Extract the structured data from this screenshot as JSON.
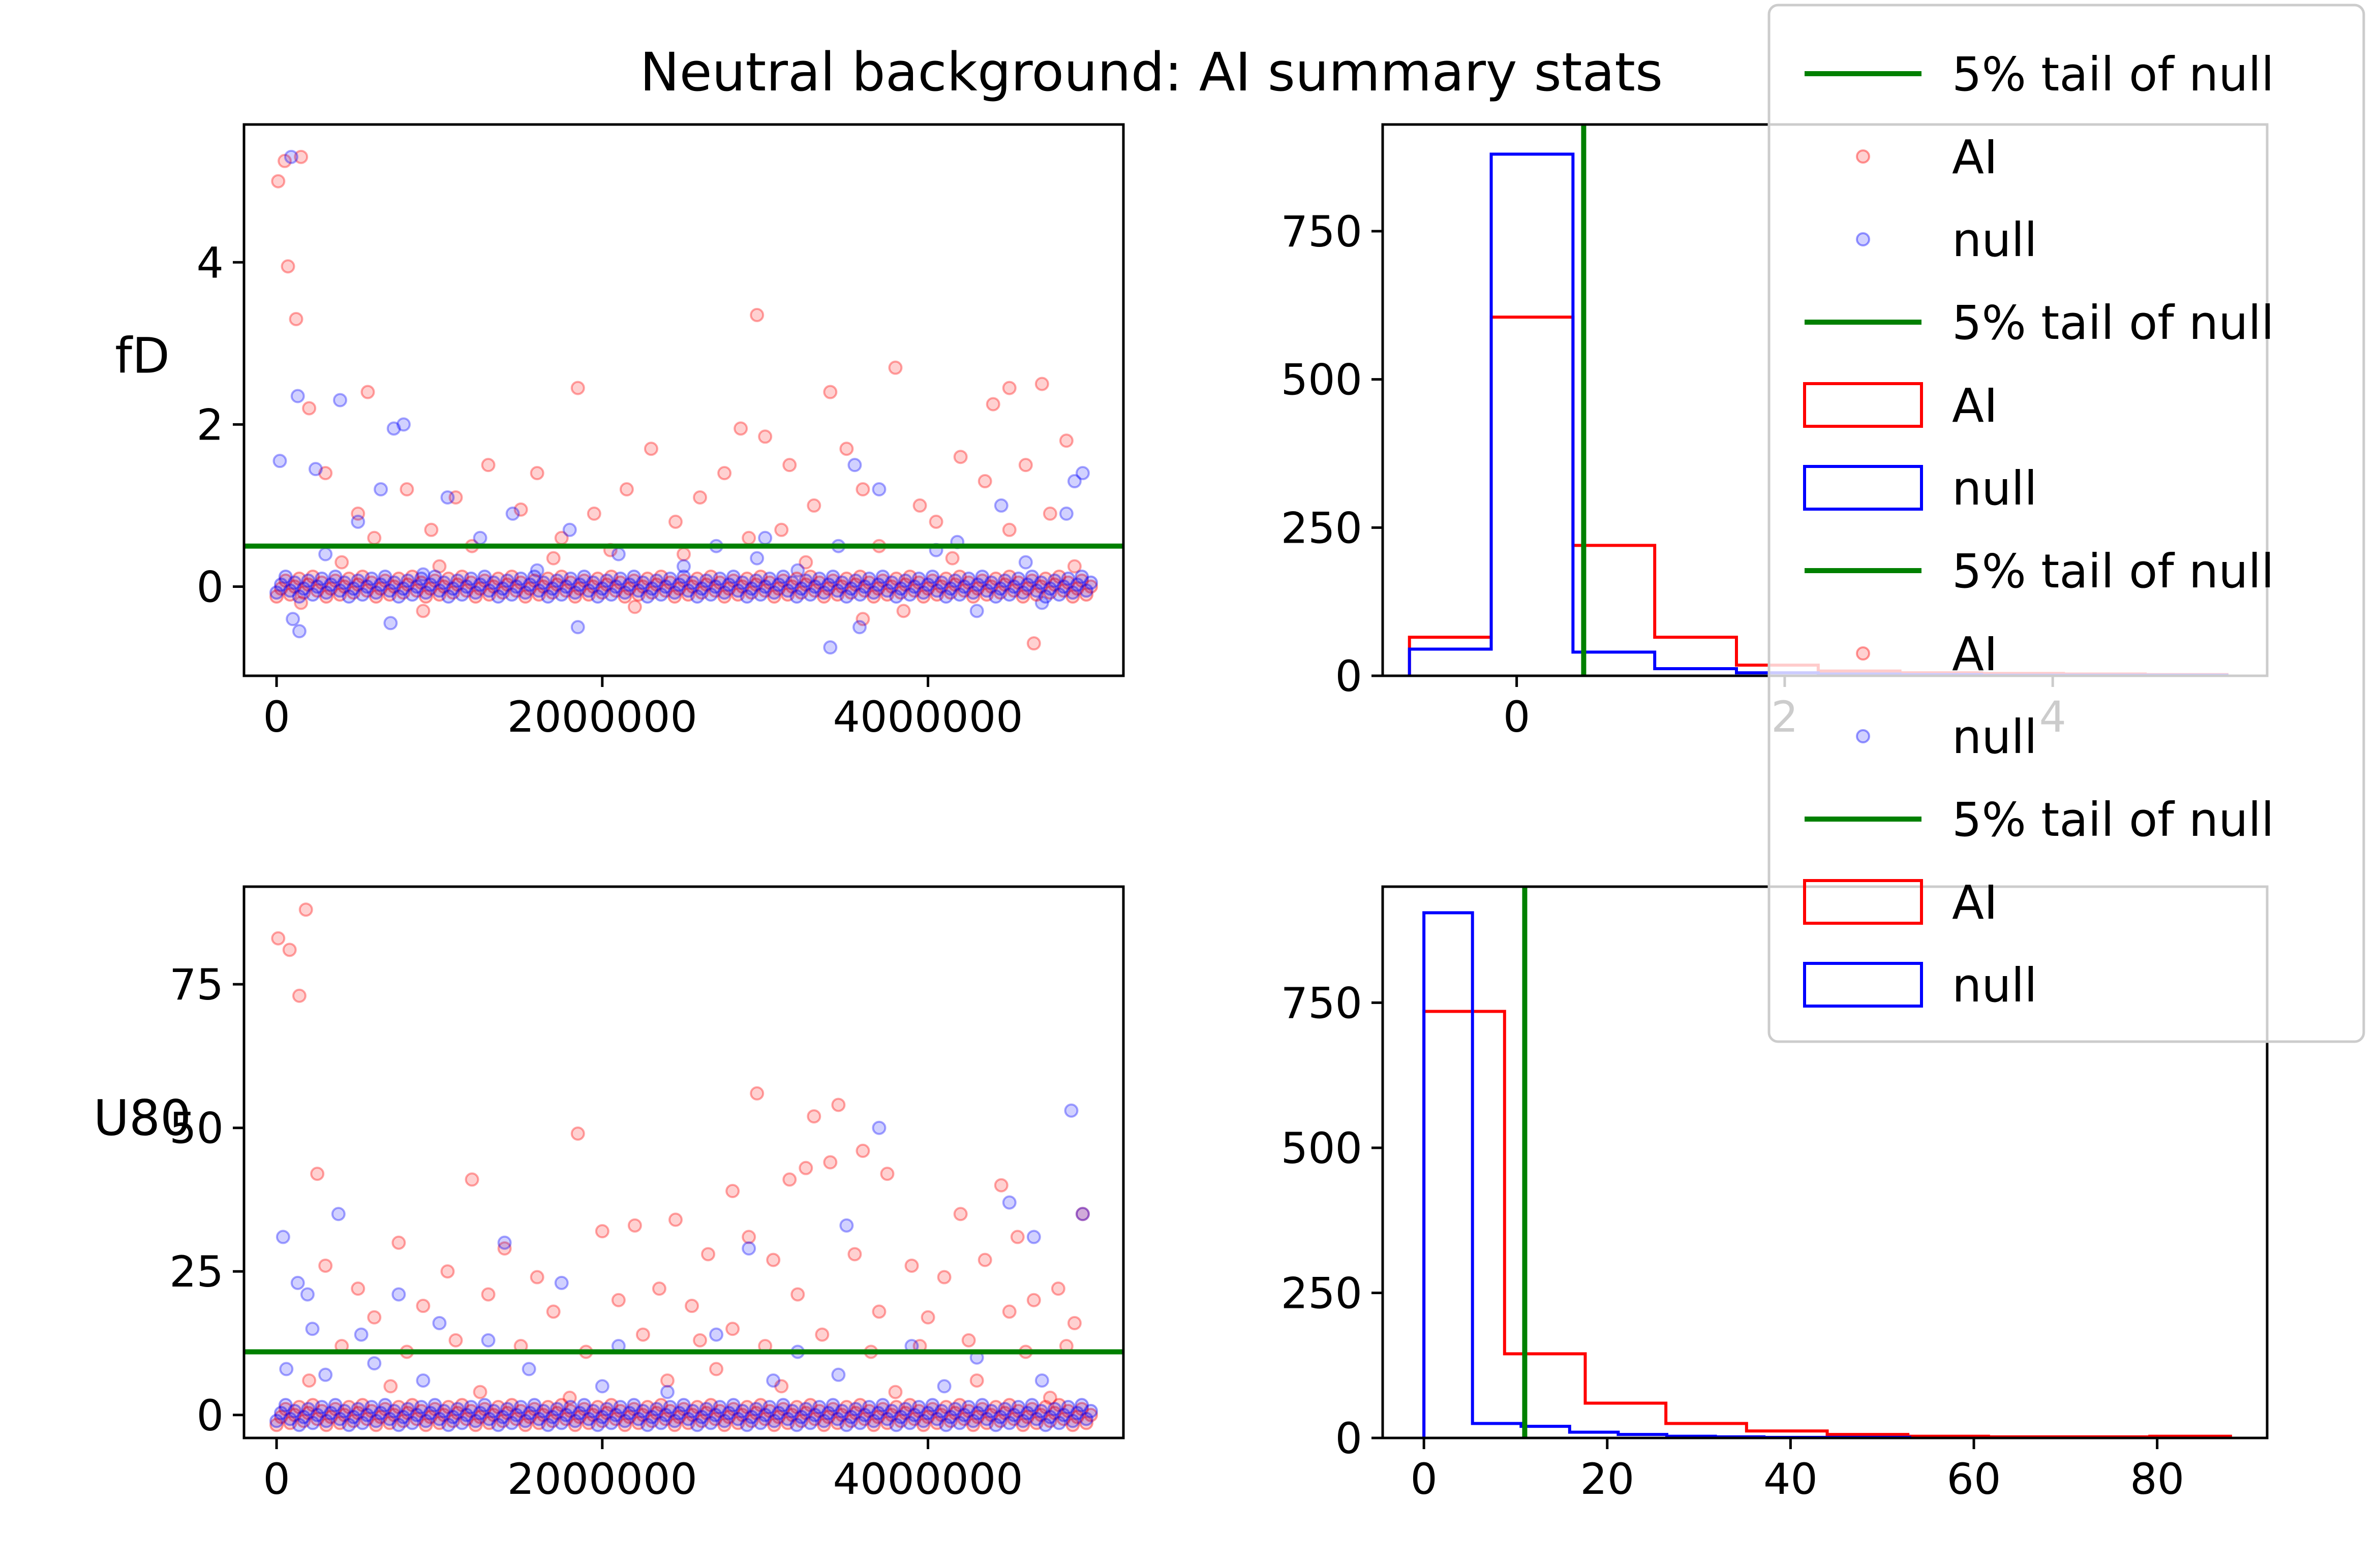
{
  "title": "Neutral background: AI summary stats",
  "colors": {
    "ai": "#ff0000",
    "null": "#0000ff",
    "threshold": "#008000"
  },
  "legend": {
    "placement": "upper-right",
    "entries": [
      {
        "kind": "line",
        "label": "5% tail of null"
      },
      {
        "kind": "marker-ai",
        "label": "AI"
      },
      {
        "kind": "marker-null",
        "label": "null"
      },
      {
        "kind": "line",
        "label": "5% tail of null"
      },
      {
        "kind": "step-ai",
        "label": "AI"
      },
      {
        "kind": "step-null",
        "label": "null"
      },
      {
        "kind": "line",
        "label": "5% tail of null"
      },
      {
        "kind": "marker-ai",
        "label": "AI"
      },
      {
        "kind": "marker-null",
        "label": "null"
      },
      {
        "kind": "line",
        "label": "5% tail of null"
      },
      {
        "kind": "step-ai",
        "label": "AI"
      },
      {
        "kind": "step-null",
        "label": "null"
      }
    ]
  },
  "chart_data": [
    {
      "type": "scatter",
      "ylabel": "fD",
      "xlim": [
        -200000,
        5200000
      ],
      "ylim": [
        -1.1,
        5.7
      ],
      "xticks": [
        0,
        2000000,
        4000000
      ],
      "xtick_labels": [
        "0",
        "2000000",
        "4000000"
      ],
      "yticks": [
        0,
        2,
        4
      ],
      "ytick_labels": [
        "0",
        "2",
        "4"
      ],
      "threshold": 0.5,
      "series": [
        {
          "name": "AI",
          "points": [
            [
              10000,
              5.0
            ],
            [
              50000,
              5.25
            ],
            [
              150000,
              5.3
            ],
            [
              70000,
              3.95
            ],
            [
              120000,
              3.3
            ],
            [
              2950000,
              3.35
            ],
            [
              3800000,
              2.7
            ],
            [
              1850000,
              2.45
            ],
            [
              4700000,
              2.5
            ],
            [
              3400000,
              2.4
            ],
            [
              4500000,
              2.45
            ],
            [
              560000,
              2.4
            ],
            [
              200000,
              2.2
            ],
            [
              4400000,
              2.25
            ],
            [
              2850000,
              1.95
            ],
            [
              1100000,
              1.1
            ],
            [
              1300000,
              1.5
            ],
            [
              1600000,
              1.4
            ],
            [
              2300000,
              1.7
            ],
            [
              3000000,
              1.85
            ],
            [
              3150000,
              1.5
            ],
            [
              3600000,
              1.2
            ],
            [
              4200000,
              1.6
            ],
            [
              4600000,
              1.5
            ],
            [
              800000,
              1.2
            ],
            [
              2600000,
              1.1
            ],
            [
              1950000,
              0.9
            ],
            [
              3300000,
              1.0
            ],
            [
              4050000,
              0.8
            ],
            [
              500000,
              0.9
            ],
            [
              1500000,
              0.95
            ],
            [
              2150000,
              1.2
            ],
            [
              2750000,
              1.4
            ],
            [
              3500000,
              1.7
            ],
            [
              4350000,
              1.3
            ],
            [
              4850000,
              1.8
            ],
            [
              300000,
              1.4
            ],
            [
              950000,
              0.7
            ],
            [
              1750000,
              0.6
            ],
            [
              2450000,
              0.8
            ],
            [
              3100000,
              0.7
            ],
            [
              3950000,
              1.0
            ],
            [
              4750000,
              0.9
            ],
            [
              600000,
              0.6
            ],
            [
              1200000,
              0.5
            ],
            [
              2050000,
              0.45
            ],
            [
              2900000,
              0.6
            ],
            [
              3700000,
              0.5
            ],
            [
              4500000,
              0.7
            ],
            [
              400000,
              0.3
            ],
            [
              1000000,
              0.25
            ],
            [
              1700000,
              0.35
            ],
            [
              2500000,
              0.4
            ],
            [
              3250000,
              0.3
            ],
            [
              4150000,
              0.35
            ],
            [
              4900000,
              0.25
            ],
            [
              150000,
              -0.2
            ],
            [
              900000,
              -0.3
            ],
            [
              2200000,
              -0.25
            ],
            [
              3600000,
              -0.4
            ],
            [
              4650000,
              -0.7
            ],
            [
              3850000,
              -0.3
            ]
          ]
        },
        {
          "name": "null",
          "points": [
            [
              90000,
              5.3
            ],
            [
              130000,
              2.35
            ],
            [
              390000,
              2.3
            ],
            [
              720000,
              1.95
            ],
            [
              780000,
              2.0
            ],
            [
              20000,
              1.55
            ],
            [
              240000,
              1.45
            ],
            [
              640000,
              1.2
            ],
            [
              1050000,
              1.1
            ],
            [
              1450000,
              0.9
            ],
            [
              1800000,
              0.7
            ],
            [
              2700000,
              0.5
            ],
            [
              3000000,
              0.6
            ],
            [
              3550000,
              1.5
            ],
            [
              3700000,
              1.2
            ],
            [
              4450000,
              1.0
            ],
            [
              4900000,
              1.3
            ],
            [
              4950000,
              1.4
            ],
            [
              4850000,
              0.9
            ],
            [
              4180000,
              0.55
            ],
            [
              500000,
              0.8
            ],
            [
              1250000,
              0.6
            ],
            [
              2100000,
              0.4
            ],
            [
              2950000,
              0.35
            ],
            [
              3450000,
              0.5
            ],
            [
              4050000,
              0.45
            ],
            [
              300000,
              0.4
            ],
            [
              100000,
              -0.4
            ],
            [
              140000,
              -0.55
            ],
            [
              700000,
              -0.45
            ],
            [
              1850000,
              -0.5
            ],
            [
              3400000,
              -0.75
            ],
            [
              3580000,
              -0.5
            ],
            [
              4300000,
              -0.3
            ],
            [
              4700000,
              -0.2
            ],
            [
              900000,
              0.15
            ],
            [
              1600000,
              0.2
            ],
            [
              2500000,
              0.25
            ],
            [
              3200000,
              0.2
            ],
            [
              4600000,
              0.3
            ]
          ]
        }
      ]
    },
    {
      "type": "bar",
      "histtype": "step",
      "xlim": [
        -1.0,
        5.6
      ],
      "ylim": [
        0,
        930
      ],
      "xticks": [
        0,
        2,
        4
      ],
      "xtick_labels": [
        "0",
        "2",
        "4"
      ],
      "yticks": [
        0,
        250,
        500,
        750
      ],
      "ytick_labels": [
        "0",
        "250",
        "500",
        "750"
      ],
      "threshold": 0.5,
      "series": [
        {
          "name": "AI",
          "edges": [
            -0.8,
            -0.19,
            0.42,
            1.03,
            1.64,
            2.25,
            2.86,
            3.47,
            4.08,
            4.69,
            5.3
          ],
          "values": [
            65,
            605,
            220,
            65,
            18,
            8,
            5,
            4,
            3,
            2
          ]
        },
        {
          "name": "null",
          "edges": [
            -0.8,
            -0.19,
            0.42,
            1.03,
            1.64,
            2.25,
            2.86,
            3.47,
            4.08,
            4.69,
            5.3
          ],
          "values": [
            45,
            880,
            40,
            12,
            5,
            3,
            2,
            1,
            1,
            1
          ]
        }
      ]
    },
    {
      "type": "scatter",
      "ylabel": "U80",
      "xlim": [
        -200000,
        5200000
      ],
      "ylim": [
        -4,
        92
      ],
      "xticks": [
        0,
        2000000,
        4000000
      ],
      "xtick_labels": [
        "0",
        "2000000",
        "4000000"
      ],
      "yticks": [
        0,
        25,
        50,
        75
      ],
      "ytick_labels": [
        "0",
        "25",
        "50",
        "75"
      ],
      "threshold": 11,
      "series": [
        {
          "name": "AI",
          "points": [
            [
              10000,
              83
            ],
            [
              80000,
              81
            ],
            [
              180000,
              88
            ],
            [
              140000,
              73
            ],
            [
              2950000,
              56
            ],
            [
              3450000,
              54
            ],
            [
              3300000,
              52
            ],
            [
              1850000,
              49
            ],
            [
              3600000,
              46
            ],
            [
              3250000,
              43
            ],
            [
              3400000,
              44
            ],
            [
              250000,
              42
            ],
            [
              1200000,
              41
            ],
            [
              4450000,
              40
            ],
            [
              2800000,
              39
            ],
            [
              3150000,
              41
            ],
            [
              3750000,
              42
            ],
            [
              4200000,
              35
            ],
            [
              4550000,
              31
            ],
            [
              4950000,
              35
            ],
            [
              2200000,
              33
            ],
            [
              2450000,
              34
            ],
            [
              2000000,
              32
            ],
            [
              1400000,
              29
            ],
            [
              1050000,
              25
            ],
            [
              750000,
              30
            ],
            [
              500000,
              22
            ],
            [
              300000,
              26
            ],
            [
              1600000,
              24
            ],
            [
              2650000,
              28
            ],
            [
              2900000,
              31
            ],
            [
              3050000,
              27
            ],
            [
              3550000,
              28
            ],
            [
              3900000,
              26
            ],
            [
              4100000,
              24
            ],
            [
              4350000,
              27
            ],
            [
              4650000,
              20
            ],
            [
              4800000,
              22
            ],
            [
              600000,
              17
            ],
            [
              900000,
              19
            ],
            [
              1300000,
              21
            ],
            [
              1700000,
              18
            ],
            [
              2100000,
              20
            ],
            [
              2350000,
              22
            ],
            [
              2550000,
              19
            ],
            [
              3200000,
              21
            ],
            [
              3700000,
              18
            ],
            [
              4000000,
              17
            ],
            [
              4500000,
              18
            ],
            [
              4900000,
              16
            ],
            [
              400000,
              12
            ],
            [
              800000,
              11
            ],
            [
              1100000,
              13
            ],
            [
              1500000,
              12
            ],
            [
              1900000,
              11
            ],
            [
              2250000,
              14
            ],
            [
              2600000,
              13
            ],
            [
              2800000,
              15
            ],
            [
              3000000,
              12
            ],
            [
              3350000,
              14
            ],
            [
              3650000,
              11
            ],
            [
              3950000,
              12
            ],
            [
              4250000,
              13
            ],
            [
              4600000,
              11
            ],
            [
              4850000,
              12
            ],
            [
              200000,
              6
            ],
            [
              700000,
              5
            ],
            [
              1250000,
              4
            ],
            [
              1800000,
              3
            ],
            [
              2400000,
              6
            ],
            [
              2700000,
              8
            ],
            [
              3100000,
              5
            ],
            [
              3800000,
              4
            ],
            [
              4300000,
              6
            ],
            [
              4750000,
              3
            ]
          ]
        },
        {
          "name": "null",
          "points": [
            [
              40000,
              31
            ],
            [
              130000,
              23
            ],
            [
              190000,
              21
            ],
            [
              380000,
              35
            ],
            [
              750000,
              21
            ],
            [
              1400000,
              30
            ],
            [
              1750000,
              23
            ],
            [
              2900000,
              29
            ],
            [
              3500000,
              33
            ],
            [
              3700000,
              50
            ],
            [
              4880000,
              53
            ],
            [
              4500000,
              37
            ],
            [
              4650000,
              31
            ],
            [
              4950000,
              35
            ],
            [
              220000,
              15
            ],
            [
              520000,
              14
            ],
            [
              1000000,
              16
            ],
            [
              1300000,
              13
            ],
            [
              2100000,
              12
            ],
            [
              2700000,
              14
            ],
            [
              3200000,
              11
            ],
            [
              3900000,
              12
            ],
            [
              4300000,
              10
            ],
            [
              60000,
              8
            ],
            [
              300000,
              7
            ],
            [
              600000,
              9
            ],
            [
              900000,
              6
            ],
            [
              1550000,
              8
            ],
            [
              2000000,
              5
            ],
            [
              2400000,
              4
            ],
            [
              3050000,
              6
            ],
            [
              3450000,
              7
            ],
            [
              4100000,
              5
            ],
            [
              4700000,
              6
            ]
          ]
        }
      ]
    },
    {
      "type": "bar",
      "histtype": "step",
      "xlim": [
        -4.5,
        92
      ],
      "ylim": [
        0,
        950
      ],
      "xticks": [
        0,
        20,
        40,
        60,
        80
      ],
      "xtick_labels": [
        "0",
        "20",
        "40",
        "60",
        "80"
      ],
      "yticks": [
        0,
        250,
        500,
        750
      ],
      "ytick_labels": [
        "0",
        "250",
        "500",
        "750"
      ],
      "threshold": 11,
      "series": [
        {
          "name": "AI",
          "edges": [
            0,
            8.8,
            17.6,
            26.4,
            35.2,
            44.0,
            52.8,
            61.6,
            70.4,
            79.2,
            88.0
          ],
          "values": [
            735,
            145,
            60,
            25,
            12,
            6,
            3,
            2,
            2,
            3
          ]
        },
        {
          "name": "null",
          "edges": [
            0,
            5.3,
            10.6,
            15.9,
            21.2,
            26.5,
            31.8,
            37.1,
            42.4,
            47.7,
            53.0
          ],
          "values": [
            905,
            25,
            20,
            10,
            6,
            3,
            2,
            1,
            1,
            1
          ]
        }
      ]
    }
  ]
}
